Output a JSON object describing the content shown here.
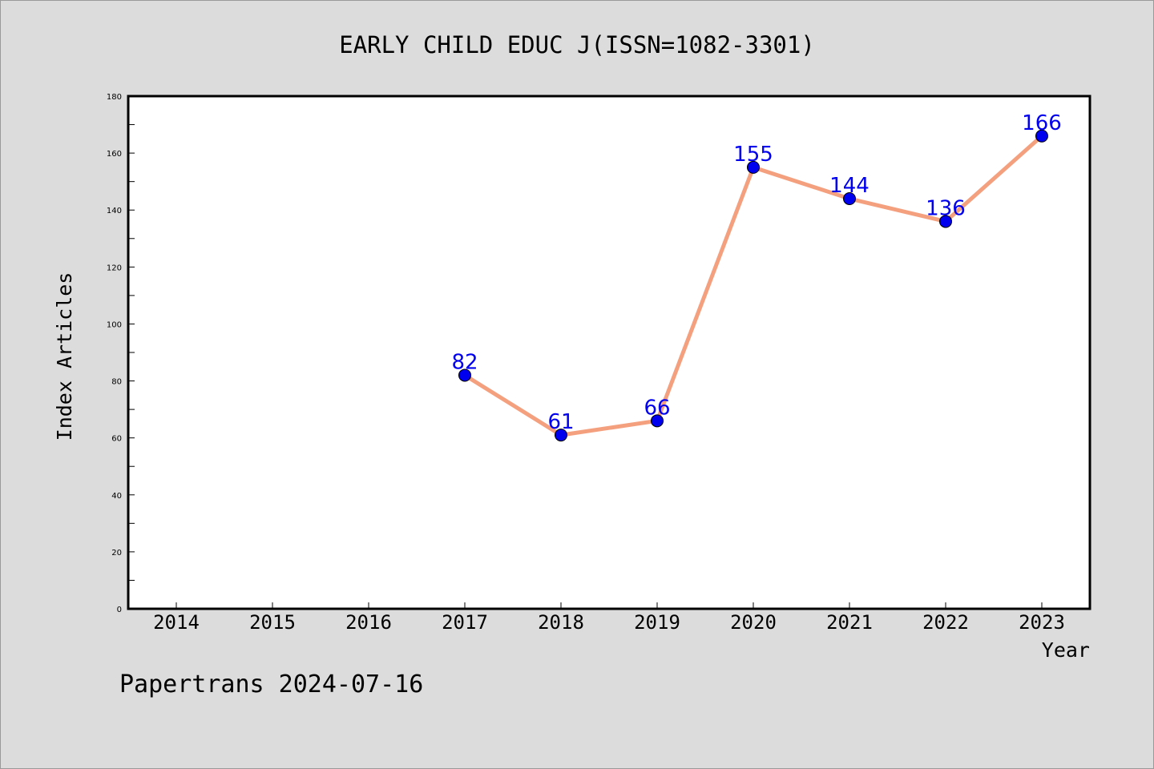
{
  "chart_data": {
    "type": "line",
    "title": "EARLY CHILD EDUC J(ISSN=1082-3301)",
    "xlabel": "Year",
    "ylabel": "Index Articles",
    "categories": [
      "2014",
      "2015",
      "2016",
      "2017",
      "2018",
      "2019",
      "2020",
      "2021",
      "2022",
      "2023"
    ],
    "ylim": [
      0,
      180
    ],
    "yticks": [
      "0",
      "20",
      "40",
      "60",
      "80",
      "100",
      "120",
      "140",
      "160",
      "180"
    ],
    "series": [
      {
        "x": [
          "2017",
          "2018",
          "2019",
          "2020",
          "2021",
          "2022",
          "2023"
        ],
        "values": [
          82,
          61,
          66,
          155,
          144,
          136,
          166
        ],
        "labels": [
          "82",
          "61",
          "66",
          "155",
          "144",
          "136",
          "166"
        ]
      }
    ],
    "line_color": "#f4a07f",
    "marker_color": "#0000ee",
    "label_color": "#0000ee",
    "grid": false,
    "footer": "Papertrans 2024-07-16"
  }
}
